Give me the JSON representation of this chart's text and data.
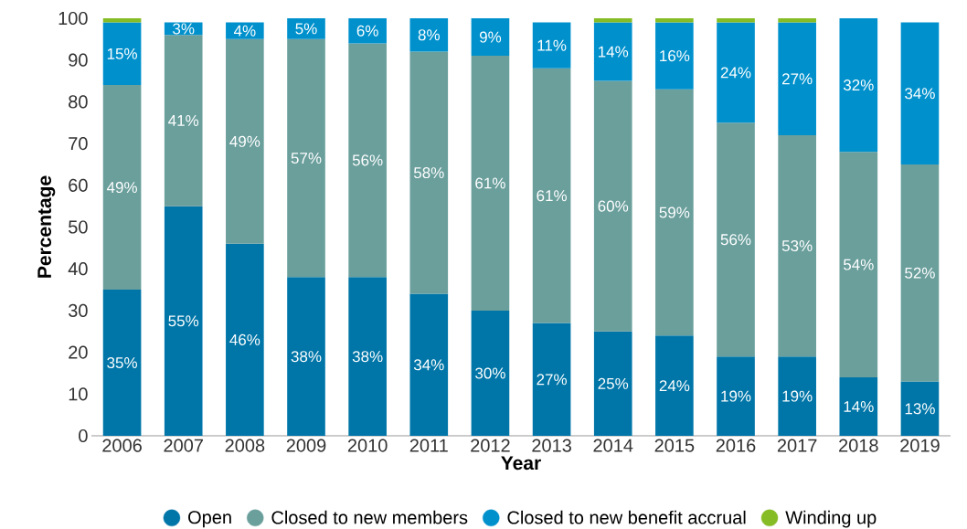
{
  "chart_data": {
    "type": "bar",
    "stacked": true,
    "xlabel": "Year",
    "ylabel": "Percentage",
    "categories": [
      "2006",
      "2007",
      "2008",
      "2009",
      "2010",
      "2011",
      "2012",
      "2013",
      "2014",
      "2015",
      "2016",
      "2017",
      "2018",
      "2019"
    ],
    "series": [
      {
        "name": "Open",
        "color": "#0076a8",
        "values": [
          35,
          55,
          46,
          38,
          38,
          34,
          30,
          27,
          25,
          24,
          19,
          19,
          14,
          13
        ],
        "value_labels": [
          "35%",
          "55%",
          "46%",
          "38%",
          "38%",
          "34%",
          "30%",
          "27%",
          "25%",
          "24%",
          "19%",
          "19%",
          "14%",
          "13%"
        ]
      },
      {
        "name": "Closed to new members",
        "color": "#6a9f9c",
        "values": [
          49,
          41,
          49,
          57,
          56,
          58,
          61,
          61,
          60,
          59,
          56,
          53,
          54,
          52
        ],
        "value_labels": [
          "49%",
          "41%",
          "49%",
          "57%",
          "56%",
          "58%",
          "61%",
          "61%",
          "60%",
          "59%",
          "56%",
          "53%",
          "54%",
          "52%"
        ]
      },
      {
        "name": "Closed to new benefit accrual",
        "color": "#0091cd",
        "values": [
          15,
          3,
          4,
          5,
          6,
          8,
          9,
          11,
          14,
          16,
          24,
          27,
          32,
          34
        ],
        "value_labels": [
          "15%",
          "3%",
          "4%",
          "5%",
          "6%",
          "8%",
          "9%",
          "11%",
          "14%",
          "16%",
          "24%",
          "27%",
          "32%",
          "34%"
        ]
      },
      {
        "name": "Winding up",
        "color": "#86bc25",
        "values": [
          1,
          null,
          null,
          null,
          null,
          null,
          null,
          null,
          1,
          1,
          1,
          1,
          null,
          null
        ]
      }
    ],
    "ylim": [
      0,
      100
    ],
    "yticks": [
      0,
      10,
      20,
      30,
      40,
      50,
      60,
      70,
      80,
      90,
      100
    ],
    "legend": "bottom",
    "grid": false
  }
}
